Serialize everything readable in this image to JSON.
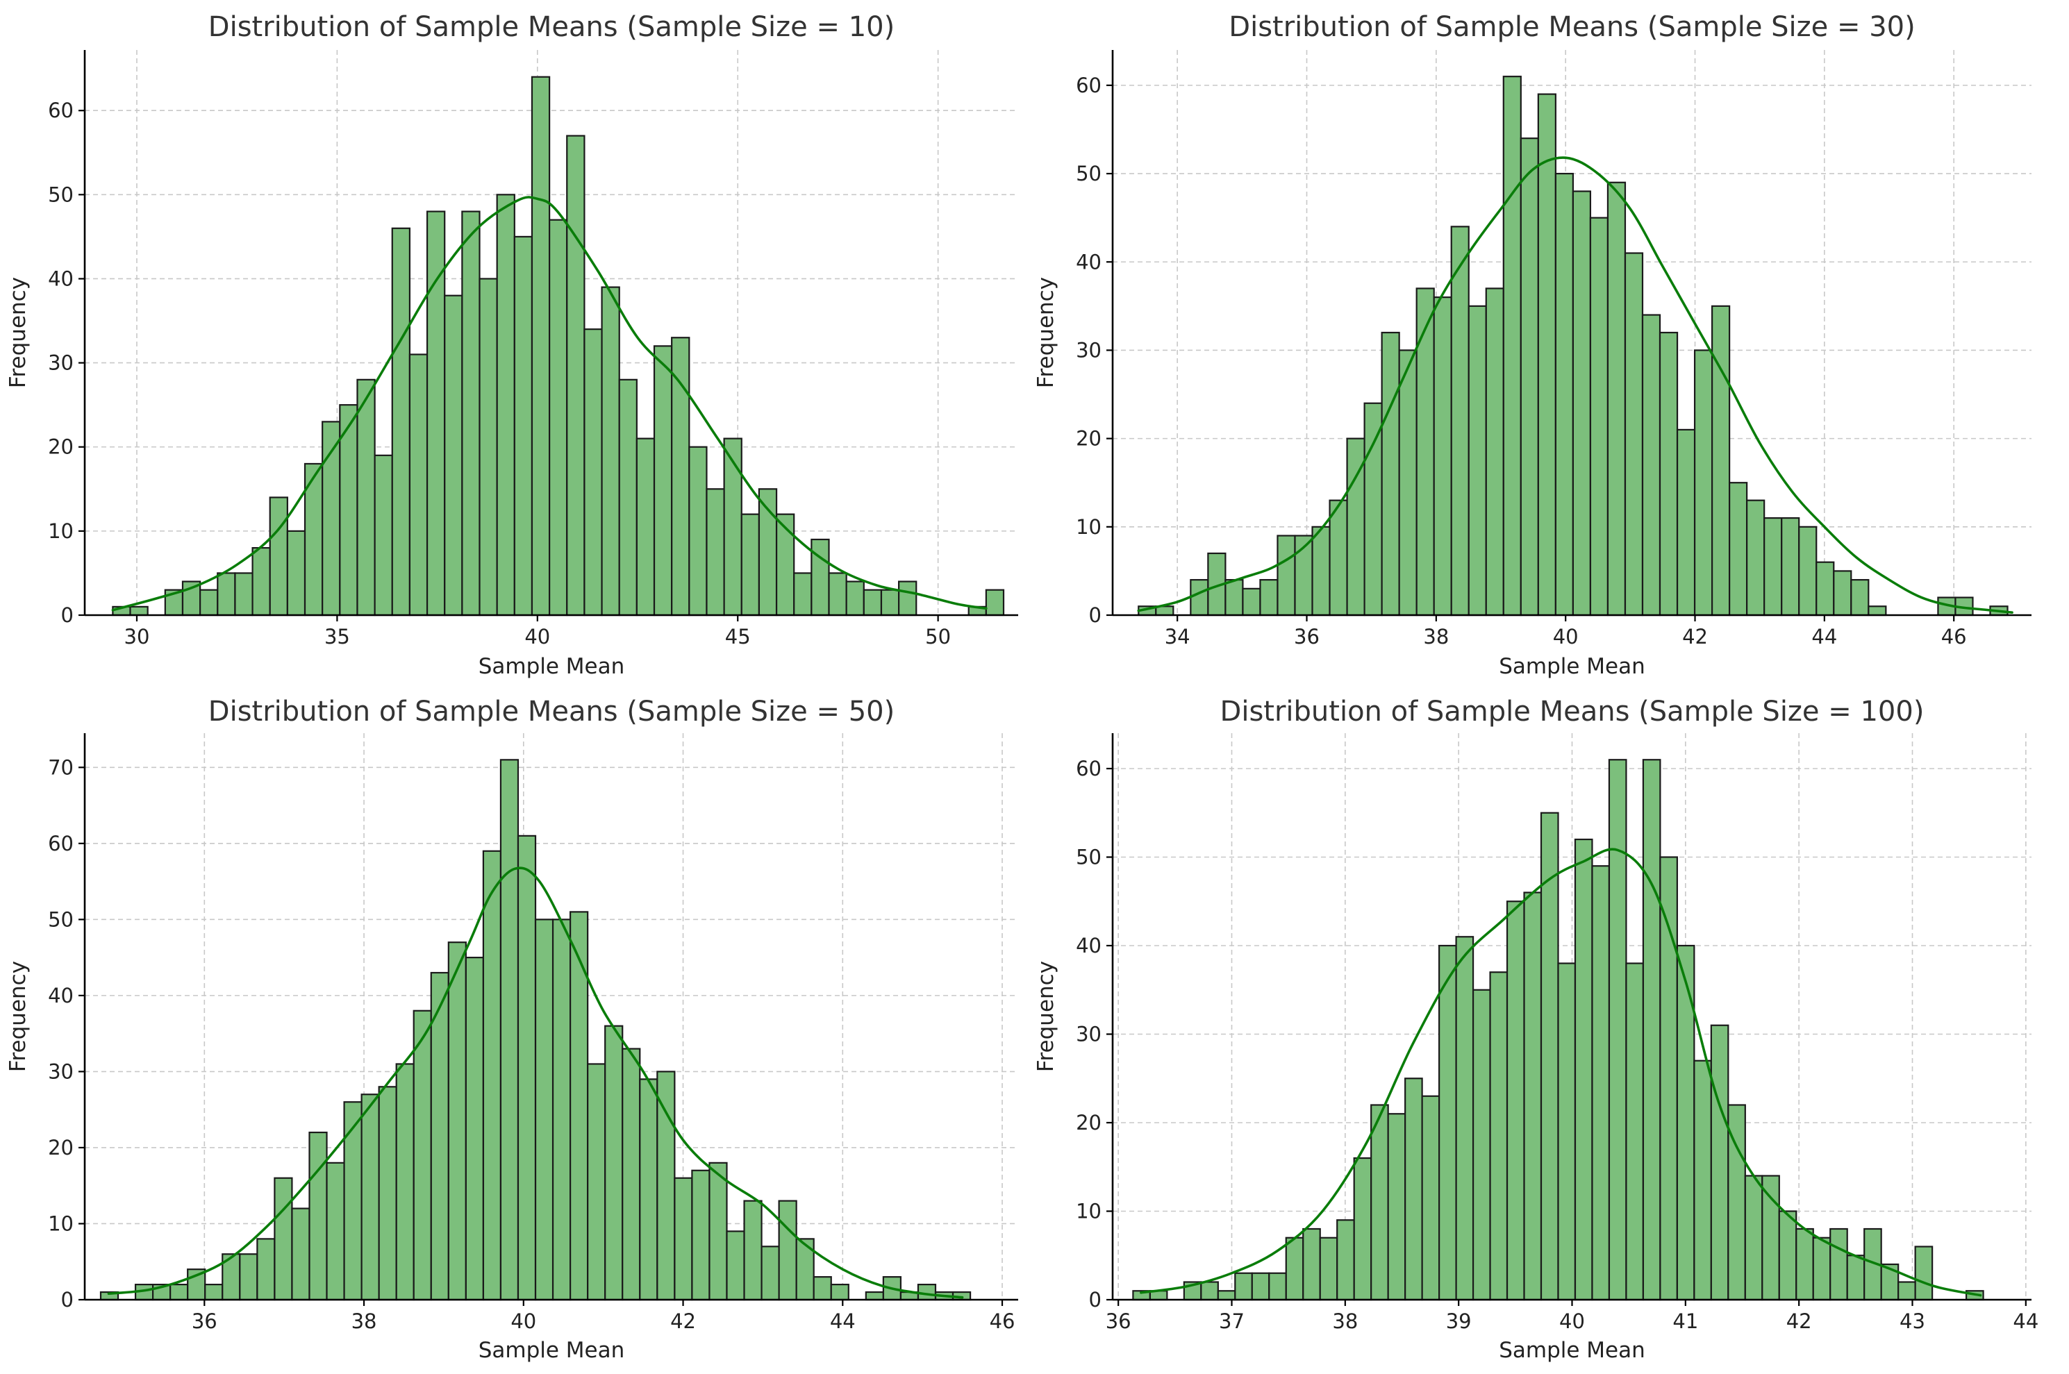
{
  "figure": {
    "colors": {
      "bar_fill": "#7cbf7c",
      "bar_edge": "#1a1a1a",
      "kde": "#0a7d0a",
      "grid": "#c8c8c8",
      "title": "#333333"
    }
  },
  "chart_data": [
    {
      "type": "bar",
      "title": "Distribution of Sample Means (Sample Size = 10)",
      "xlabel": "Sample Mean",
      "ylabel": "Frequency",
      "grid": true,
      "xlim": [
        28.7,
        52.0
      ],
      "ylim": [
        0,
        67.2
      ],
      "xticks": [
        30,
        35,
        40,
        45,
        50
      ],
      "yticks": [
        0,
        10,
        20,
        30,
        40,
        50,
        60
      ],
      "bin_start": 29.4,
      "bin_width": 0.436,
      "values": [
        1,
        1,
        0,
        3,
        4,
        3,
        5,
        5,
        8,
        14,
        10,
        18,
        23,
        25,
        28,
        19,
        46,
        31,
        48,
        38,
        48,
        40,
        50,
        45,
        64,
        47,
        57,
        34,
        39,
        28,
        21,
        32,
        33,
        20,
        15,
        21,
        12,
        15,
        12,
        5,
        9,
        5,
        4,
        3,
        3,
        4,
        0,
        0,
        0,
        1,
        3
      ],
      "kde": {
        "x": [
          29.4,
          30.5,
          31.5,
          32.5,
          33.5,
          34.5,
          35.5,
          36.5,
          37.5,
          38.5,
          39.5,
          40.0,
          40.5,
          41.5,
          42.5,
          43.5,
          44.5,
          45.5,
          46.5,
          47.5,
          48.5,
          49.5,
          50.5,
          51.2
        ],
        "y": [
          0.6,
          2,
          3.5,
          6,
          10,
          17,
          24,
          32,
          40,
          46,
          49.3,
          49.5,
          48,
          41,
          33,
          28,
          21,
          14,
          9,
          5.5,
          3.5,
          2.5,
          1.3,
          0.8
        ]
      }
    },
    {
      "type": "bar",
      "title": "Distribution of Sample Means (Sample Size = 30)",
      "xlabel": "Sample Mean",
      "ylabel": "Frequency",
      "grid": true,
      "xlim": [
        33.0,
        47.2
      ],
      "ylim": [
        0,
        64
      ],
      "xticks": [
        34,
        36,
        38,
        40,
        42,
        44,
        46
      ],
      "yticks": [
        0,
        10,
        20,
        30,
        40,
        50,
        60
      ],
      "bin_start": 33.4,
      "bin_width": 0.2686,
      "values": [
        1,
        1,
        0,
        4,
        7,
        4,
        3,
        4,
        9,
        9,
        10,
        13,
        20,
        24,
        32,
        30,
        37,
        36,
        44,
        35,
        37,
        61,
        54,
        59,
        50,
        48,
        45,
        49,
        41,
        34,
        32,
        21,
        30,
        35,
        15,
        13,
        11,
        11,
        10,
        6,
        5,
        4,
        1,
        0,
        0,
        0,
        2,
        2,
        0,
        1
      ],
      "kde": {
        "x": [
          33.4,
          34.0,
          34.5,
          35.0,
          35.5,
          36.0,
          36.5,
          37.0,
          37.5,
          38.0,
          38.5,
          39.0,
          39.5,
          40.0,
          40.5,
          41.0,
          41.5,
          42.0,
          42.5,
          43.0,
          43.5,
          44.0,
          44.5,
          45.0,
          45.5,
          46.0,
          46.5,
          46.9
        ],
        "y": [
          0.5,
          1.5,
          3,
          4.2,
          5.5,
          8,
          12.5,
          19,
          27,
          35,
          41,
          46,
          50.5,
          51.8,
          50,
          46,
          39.5,
          33,
          26.5,
          19.5,
          14,
          10,
          6.5,
          4,
          2,
          1,
          0.6,
          0.3
        ]
      }
    },
    {
      "type": "bar",
      "title": "Distribution of Sample Means (Sample Size = 50)",
      "xlabel": "Sample Mean",
      "ylabel": "Frequency",
      "grid": true,
      "xlim": [
        34.5,
        46.2
      ],
      "ylim": [
        0,
        74.5
      ],
      "xticks": [
        36,
        38,
        40,
        42,
        44,
        46
      ],
      "yticks": [
        0,
        10,
        20,
        30,
        40,
        50,
        60,
        70
      ],
      "bin_start": 34.7,
      "bin_width": 0.218,
      "values": [
        1,
        0,
        2,
        2,
        2,
        4,
        2,
        6,
        6,
        8,
        16,
        12,
        22,
        18,
        26,
        27,
        28,
        31,
        38,
        43,
        47,
        45,
        59,
        71,
        61,
        50,
        50,
        51,
        31,
        36,
        33,
        29,
        30,
        16,
        17,
        18,
        9,
        13,
        7,
        13,
        8,
        3,
        2,
        0,
        1,
        3,
        1,
        2,
        1,
        1
      ],
      "kde": {
        "x": [
          34.8,
          35.3,
          35.8,
          36.3,
          36.8,
          37.3,
          37.8,
          38.3,
          38.8,
          39.3,
          39.6,
          39.9,
          40.2,
          40.6,
          41.0,
          41.5,
          42.0,
          42.5,
          43.0,
          43.5,
          44.0,
          44.5,
          45.0,
          45.5
        ],
        "y": [
          0.8,
          1.3,
          2.8,
          5.3,
          9.8,
          15.5,
          21.8,
          28.5,
          35.5,
          46.5,
          53.5,
          56.7,
          55,
          47,
          38,
          30,
          21,
          16,
          12.5,
          7.5,
          4,
          1.8,
          0.8,
          0.3
        ]
      }
    },
    {
      "type": "bar",
      "title": "Distribution of Sample Means (Sample Size = 100)",
      "xlabel": "Sample Mean",
      "ylabel": "Frequency",
      "grid": true,
      "xlim": [
        35.95,
        44.05
      ],
      "ylim": [
        0,
        64
      ],
      "xticks": [
        36,
        37,
        38,
        39,
        40,
        41,
        42,
        43,
        44
      ],
      "yticks": [
        0,
        10,
        20,
        30,
        40,
        50,
        60
      ],
      "bin_start": 36.13,
      "bin_width": 0.1499,
      "values": [
        1,
        1,
        0,
        2,
        2,
        1,
        3,
        3,
        3,
        7,
        8,
        7,
        9,
        16,
        22,
        21,
        25,
        23,
        40,
        41,
        35,
        37,
        45,
        46,
        55,
        38,
        52,
        49,
        61,
        38,
        61,
        50,
        40,
        27,
        31,
        22,
        14,
        14,
        10,
        8,
        7,
        8,
        5,
        8,
        4,
        2,
        6,
        0,
        0,
        1
      ],
      "kde": {
        "x": [
          36.2,
          36.6,
          37.0,
          37.4,
          37.8,
          38.2,
          38.6,
          39.0,
          39.4,
          39.8,
          40.1,
          40.4,
          40.7,
          41.0,
          41.3,
          41.6,
          42.0,
          42.4,
          42.8,
          43.2,
          43.6
        ],
        "y": [
          0.8,
          1.5,
          3,
          5.5,
          10,
          18,
          29,
          38,
          43,
          47.5,
          49.5,
          50.8,
          47,
          36,
          22,
          14,
          8.5,
          5.5,
          3.5,
          1.5,
          0.5
        ]
      }
    }
  ]
}
